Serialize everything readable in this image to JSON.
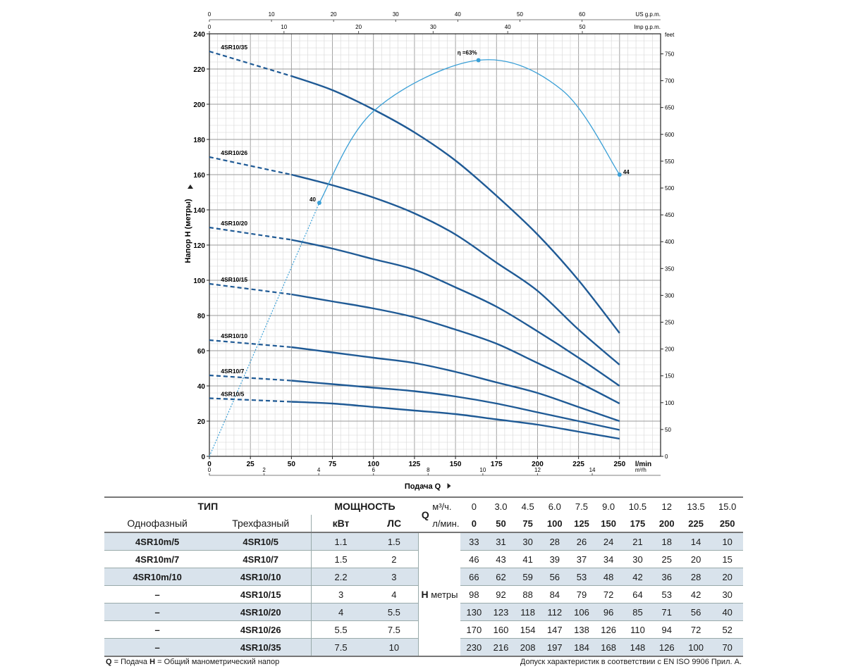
{
  "chart_data": {
    "type": "line",
    "title": "",
    "xlabel": "Подача Q",
    "xunit": "l/min",
    "ylabel": "Напор H (метры)",
    "right_unit": "feet",
    "top_axis1_unit": "US g.p.m.",
    "top_axis2_unit": "Imp g.p.m.",
    "bottom2_unit": "m³/h",
    "xlim": [
      0,
      275
    ],
    "ylim": [
      0,
      240
    ],
    "x_ticks": [
      0,
      25,
      50,
      75,
      100,
      125,
      150,
      175,
      200,
      225,
      250
    ],
    "y_ticks": [
      0,
      20,
      40,
      60,
      80,
      100,
      120,
      140,
      160,
      180,
      200,
      220,
      240
    ],
    "top_us_ticks": [
      0,
      10,
      20,
      30,
      40,
      50,
      60
    ],
    "top_imp_ticks": [
      0,
      10,
      20,
      30,
      40,
      50
    ],
    "bottom_m3h_ticks": [
      0,
      2,
      4,
      6,
      8,
      10,
      12,
      14
    ],
    "feet_ticks": [
      0,
      50,
      100,
      150,
      200,
      250,
      300,
      350,
      400,
      450,
      500,
      550,
      600,
      650,
      700,
      750
    ],
    "grid": true,
    "curve_color": "#1f5a95",
    "efficiency_color": "#3a9fd6",
    "x": [
      0,
      50,
      75,
      100,
      125,
      150,
      175,
      200,
      225,
      250
    ],
    "series": [
      {
        "name": "4SR10/35",
        "values": [
          230,
          216,
          208,
          197,
          184,
          168,
          148,
          126,
          100,
          70
        ]
      },
      {
        "name": "4SR10/26",
        "values": [
          170,
          160,
          154,
          147,
          138,
          126,
          110,
          94,
          72,
          52
        ]
      },
      {
        "name": "4SR10/20",
        "values": [
          130,
          123,
          118,
          112,
          106,
          96,
          85,
          71,
          56,
          40
        ]
      },
      {
        "name": "4SR10/15",
        "values": [
          98,
          92,
          88,
          84,
          79,
          72,
          64,
          53,
          42,
          30
        ]
      },
      {
        "name": "4SR10/10",
        "values": [
          66,
          62,
          59,
          56,
          53,
          48,
          42,
          36,
          28,
          20
        ]
      },
      {
        "name": "4SR10/7",
        "values": [
          46,
          43,
          41,
          39,
          37,
          34,
          30,
          25,
          20,
          15
        ]
      },
      {
        "name": "4SR10/5",
        "values": [
          33,
          31,
          30,
          28,
          26,
          24,
          21,
          18,
          14,
          10
        ]
      }
    ],
    "efficiency": {
      "label_main": "η =63%",
      "label_left": "40",
      "label_right": "44",
      "points": [
        [
          0,
          0
        ],
        [
          67,
          144
        ],
        [
          164,
          225
        ],
        [
          250,
          160
        ]
      ]
    }
  },
  "table": {
    "type_label": "ТИП",
    "power_label": "МОЩНОСТЬ",
    "q_label": "Q",
    "q_unit1": "м³/ч.",
    "q_unit2": "л/мин.",
    "single_phase": "Однофазный",
    "three_phase": "Трехфазный",
    "kw": "кВт",
    "hp": "ЛС",
    "h_label": "H",
    "h_unit": "метры",
    "m3h": [
      "0",
      "3.0",
      "4.5",
      "6.0",
      "7.5",
      "9.0",
      "10.5",
      "12",
      "13.5",
      "15.0"
    ],
    "lmin": [
      "0",
      "50",
      "75",
      "100",
      "125",
      "150",
      "175",
      "200",
      "225",
      "250"
    ],
    "rows": [
      {
        "single": "4SR10m/5",
        "three": "4SR10/5",
        "kw": "1.1",
        "hp": "1.5",
        "h": [
          "33",
          "31",
          "30",
          "28",
          "26",
          "24",
          "21",
          "18",
          "14",
          "10"
        ]
      },
      {
        "single": "4SR10m/7",
        "three": "4SR10/7",
        "kw": "1.5",
        "hp": "2",
        "h": [
          "46",
          "43",
          "41",
          "39",
          "37",
          "34",
          "30",
          "25",
          "20",
          "15"
        ]
      },
      {
        "single": "4SR10m/10",
        "three": "4SR10/10",
        "kw": "2.2",
        "hp": "3",
        "h": [
          "66",
          "62",
          "59",
          "56",
          "53",
          "48",
          "42",
          "36",
          "28",
          "20"
        ]
      },
      {
        "single": "–",
        "three": "4SR10/15",
        "kw": "3",
        "hp": "4",
        "h": [
          "98",
          "92",
          "88",
          "84",
          "79",
          "72",
          "64",
          "53",
          "42",
          "30"
        ]
      },
      {
        "single": "–",
        "three": "4SR10/20",
        "kw": "4",
        "hp": "5.5",
        "h": [
          "130",
          "123",
          "118",
          "112",
          "106",
          "96",
          "85",
          "71",
          "56",
          "40"
        ]
      },
      {
        "single": "–",
        "three": "4SR10/26",
        "kw": "5.5",
        "hp": "7.5",
        "h": [
          "170",
          "160",
          "154",
          "147",
          "138",
          "126",
          "110",
          "94",
          "72",
          "52"
        ]
      },
      {
        "single": "–",
        "three": "4SR10/35",
        "kw": "7.5",
        "hp": "10",
        "h": [
          "230",
          "216",
          "208",
          "197",
          "184",
          "168",
          "148",
          "126",
          "100",
          "70"
        ]
      }
    ]
  },
  "footer": {
    "q_key": "Q",
    "q_text": " = Подача ",
    "h_key": "H",
    "h_text": " = Общий манометрический напор",
    "right": "Допуск характеристик в соответствии с EN ISO 9906 Прил. А."
  }
}
